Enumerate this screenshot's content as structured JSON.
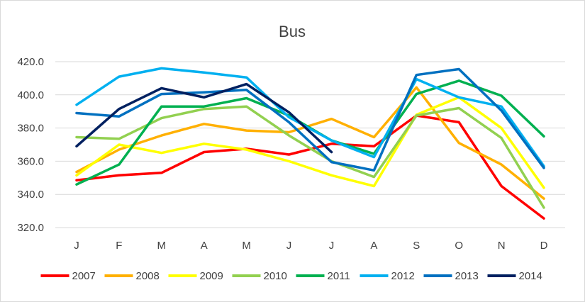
{
  "chart_data": {
    "type": "line",
    "title": "Bus",
    "xlabel": "",
    "ylabel": "",
    "categories": [
      "J",
      "F",
      "M",
      "A",
      "M",
      "J",
      "J",
      "A",
      "S",
      "O",
      "N",
      "D"
    ],
    "ylim": [
      320,
      420
    ],
    "yticks": [
      "320.0",
      "340.0",
      "360.0",
      "380.0",
      "400.0",
      "420.0"
    ],
    "grid": true,
    "legend_position": "bottom",
    "series": [
      {
        "name": "2007",
        "color": "#ff0000",
        "values": [
          348.5,
          351.5,
          353,
          365.5,
          367.5,
          364,
          370.5,
          369,
          387.5,
          383.5,
          345,
          325.5
        ]
      },
      {
        "name": "2008",
        "color": "#ffb000",
        "values": [
          353.5,
          367,
          375.5,
          382.5,
          378.5,
          377.5,
          385.5,
          374.5,
          404.5,
          371,
          358,
          337.5
        ]
      },
      {
        "name": "2009",
        "color": "#ffff00",
        "values": [
          351.5,
          370,
          365,
          370.5,
          367,
          360,
          351.5,
          345,
          388,
          398.5,
          380,
          344
        ]
      },
      {
        "name": "2010",
        "color": "#92d050",
        "values": [
          374.5,
          373.5,
          386,
          391.5,
          393,
          375.5,
          360,
          350.5,
          387.5,
          392,
          374,
          332
        ]
      },
      {
        "name": "2011",
        "color": "#00b050",
        "values": [
          346,
          358,
          393,
          393,
          398,
          387.5,
          372.5,
          364.5,
          400.5,
          408.5,
          399.5,
          375
        ]
      },
      {
        "name": "2012",
        "color": "#00b0f0",
        "values": [
          394,
          411,
          416,
          413.5,
          410.5,
          386.5,
          372.5,
          362.5,
          409.5,
          398.5,
          393,
          357
        ]
      },
      {
        "name": "2013",
        "color": "#0070c0",
        "values": [
          389,
          387,
          400.5,
          401.5,
          403,
          383.5,
          359.5,
          354.5,
          412,
          415.5,
          390.5,
          356
        ]
      },
      {
        "name": "2014",
        "color": "#002060",
        "values": [
          369,
          391.5,
          404,
          398.5,
          406.5,
          389.5,
          365.5,
          null,
          null,
          null,
          null,
          null
        ]
      }
    ]
  }
}
